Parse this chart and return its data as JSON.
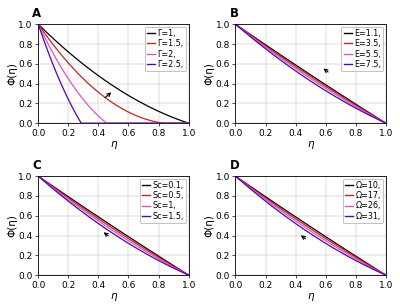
{
  "panel_A": {
    "label": "A",
    "ylabel": "Φ(η)",
    "xlabel": "η",
    "series": [
      {
        "name": "Γ=1,",
        "color": "#000000",
        "k": 0.5
      },
      {
        "name": "Γ=1.5,",
        "color": "#cc2222",
        "k": 1.2
      },
      {
        "name": "Γ=2,",
        "color": "#dd55bb",
        "k": 2.2
      },
      {
        "name": "Γ=2.5,",
        "color": "#5500bb",
        "k": 3.5
      }
    ],
    "arrow_xt": 0.43,
    "arrow_yt": 0.24,
    "arrow_xh": 0.5,
    "arrow_yh": 0.33
  },
  "panel_B": {
    "label": "B",
    "ylabel": "Φ(η)",
    "xlabel": "η",
    "series": [
      {
        "name": "E=1.1,",
        "color": "#000000",
        "k": 0.05
      },
      {
        "name": "E=3.5,",
        "color": "#cc2222",
        "k": 0.12
      },
      {
        "name": "E=5.5,",
        "color": "#dd55bb",
        "k": 0.2
      },
      {
        "name": "E=7.5,",
        "color": "#5500bb",
        "k": 0.3
      }
    ],
    "arrow_xt": 0.63,
    "arrow_yt": 0.5,
    "arrow_xh": 0.57,
    "arrow_yh": 0.57
  },
  "panel_C": {
    "label": "C",
    "ylabel": "Φ(η)",
    "xlabel": "η",
    "series": [
      {
        "name": "Sc=0.1,",
        "color": "#000000",
        "k": 0.05
      },
      {
        "name": "Sc=0.5,",
        "color": "#cc2222",
        "k": 0.13
      },
      {
        "name": "Sc=1,",
        "color": "#dd55bb",
        "k": 0.22
      },
      {
        "name": "Sc=1.5,",
        "color": "#5500bb",
        "k": 0.33
      }
    ],
    "arrow_xt": 0.48,
    "arrow_yt": 0.38,
    "arrow_xh": 0.42,
    "arrow_yh": 0.45
  },
  "panel_D": {
    "label": "D",
    "ylabel": "Φ(η)",
    "xlabel": "η",
    "series": [
      {
        "name": "Ω=10,",
        "color": "#000000",
        "k": 0.05
      },
      {
        "name": "Ω=17,",
        "color": "#cc2222",
        "k": 0.13
      },
      {
        "name": "Ω=26,",
        "color": "#dd55bb",
        "k": 0.22
      },
      {
        "name": "Ω=31,",
        "color": "#5500bb",
        "k": 0.33
      }
    ],
    "arrow_xt": 0.48,
    "arrow_yt": 0.35,
    "arrow_xh": 0.42,
    "arrow_yh": 0.42
  },
  "xlim": [
    0.0,
    1.0
  ],
  "ylim": [
    0.0,
    1.0
  ],
  "xticks": [
    0.0,
    0.2,
    0.4,
    0.6,
    0.8,
    1.0
  ],
  "yticks": [
    0.0,
    0.2,
    0.4,
    0.6,
    0.8,
    1.0
  ],
  "legend_fontsize": 5.8,
  "axis_fontsize": 7.5,
  "tick_fontsize": 6.5,
  "label_fontsize": 8.5,
  "linewidth": 0.9,
  "background_color": "#ffffff",
  "grid_color": "#bbbbbb"
}
